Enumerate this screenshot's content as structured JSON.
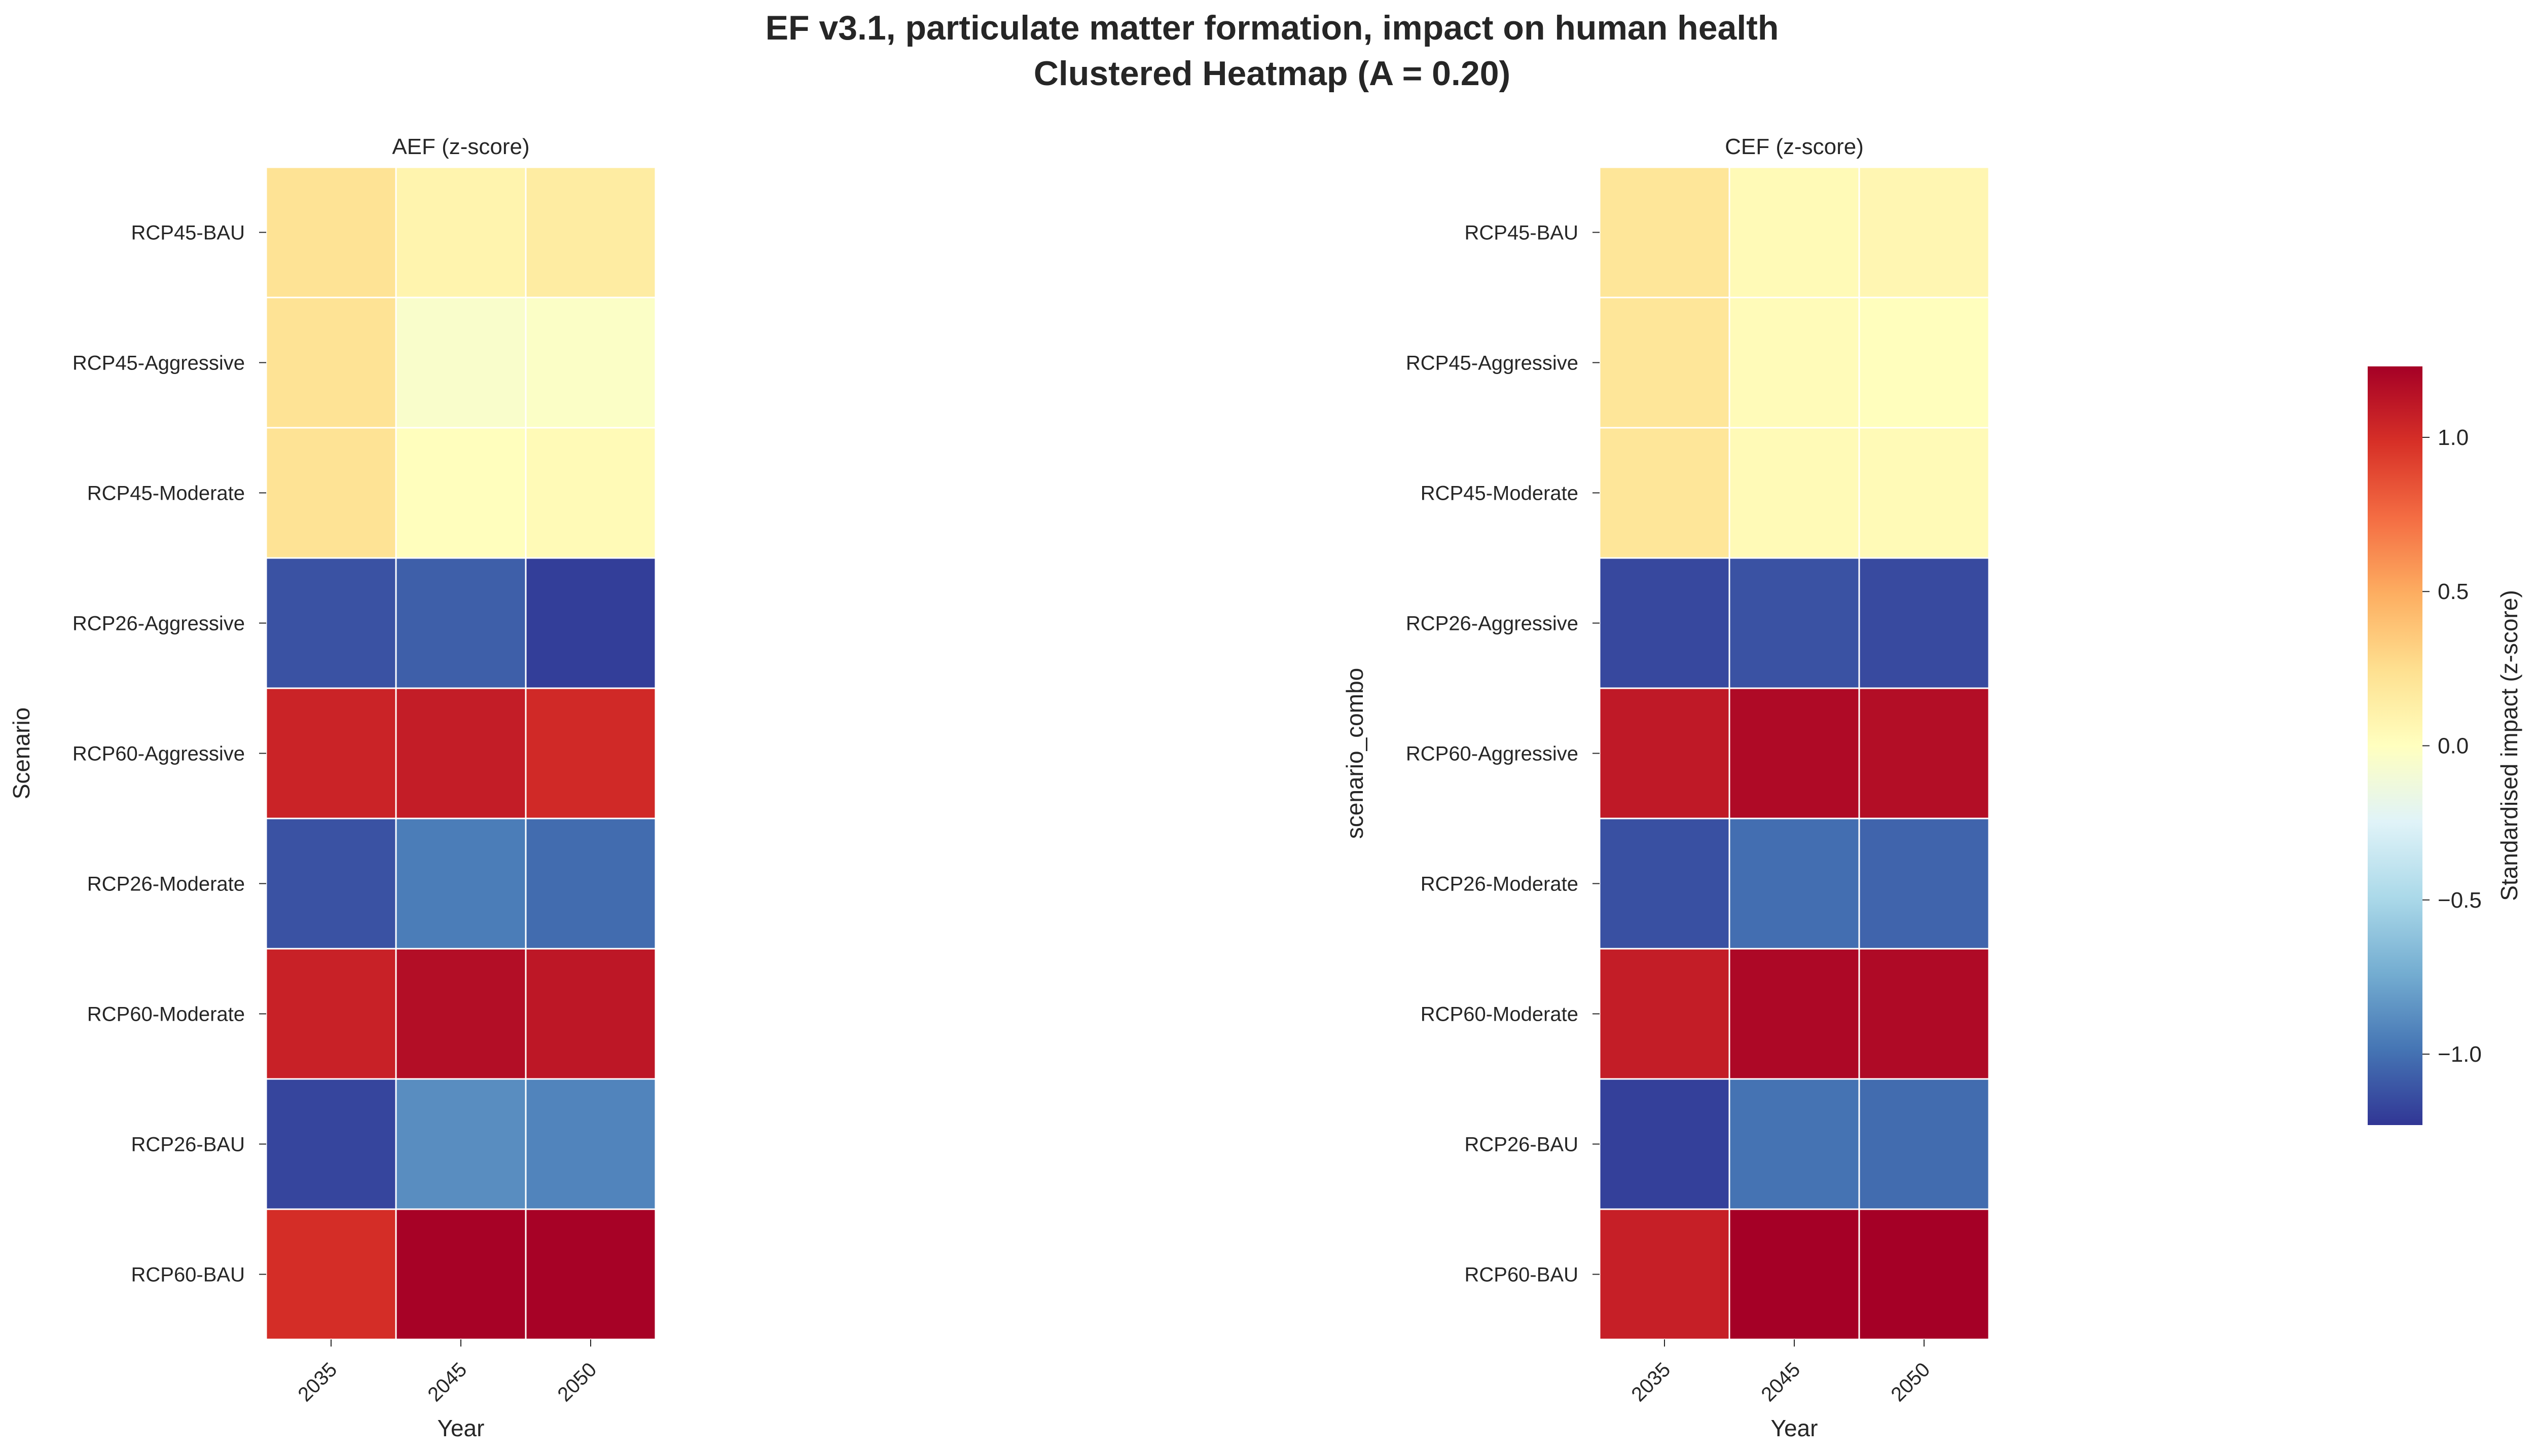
{
  "chart_data": {
    "type": "heatmap",
    "title": "EF v3.1, particulate matter formation, impact on human health",
    "subtitle": "Clustered Heatmap (A = 0.20)",
    "colormap": "RdYlBu_r",
    "vmin": -1.23,
    "vmax": 1.23,
    "colorbar": {
      "label": "Standardised impact (z-score)",
      "ticks": [
        1.0,
        0.5,
        0.0,
        -0.5,
        -1.0
      ],
      "tick_labels": [
        "1.0",
        "0.5",
        "0.0",
        "−0.5",
        "−1.0"
      ],
      "placement": "right"
    },
    "panels": [
      {
        "title": "AEF (z-score)",
        "xlabel": "Year",
        "ylabel": "Scenario",
        "columns": [
          "2035",
          "2045",
          "2050"
        ],
        "rows": [
          "RCP45-BAU",
          "RCP45-Aggressive",
          "RCP45-Moderate",
          "RCP26-Aggressive",
          "RCP60-Aggressive",
          "RCP26-Moderate",
          "RCP60-Moderate",
          "RCP26-BAU",
          "RCP60-BAU"
        ],
        "values": [
          [
            0.22,
            0.09,
            0.15
          ],
          [
            0.22,
            -0.05,
            -0.03
          ],
          [
            0.22,
            0.01,
            0.04
          ],
          [
            -1.12,
            -1.07,
            -1.2
          ],
          [
            1.05,
            1.08,
            1.02
          ],
          [
            -1.12,
            -0.95,
            -1.02
          ],
          [
            1.06,
            1.16,
            1.11
          ],
          [
            -1.17,
            -0.88,
            -0.92
          ],
          [
            1.0,
            1.22,
            1.22
          ]
        ]
      },
      {
        "title": "CEF (z-score)",
        "xlabel": "Year",
        "ylabel": "scenario_combo",
        "columns": [
          "2035",
          "2045",
          "2050"
        ],
        "rows": [
          "RCP45-BAU",
          "RCP45-Aggressive",
          "RCP45-Moderate",
          "RCP26-Aggressive",
          "RCP60-Aggressive",
          "RCP26-Moderate",
          "RCP60-Moderate",
          "RCP26-BAU",
          "RCP60-BAU"
        ],
        "values": [
          [
            0.2,
            0.04,
            0.07
          ],
          [
            0.2,
            0.03,
            0.01
          ],
          [
            0.2,
            0.04,
            0.04
          ],
          [
            -1.16,
            -1.12,
            -1.15
          ],
          [
            1.1,
            1.18,
            1.16
          ],
          [
            -1.13,
            -1.01,
            -1.05
          ],
          [
            1.08,
            1.19,
            1.18
          ],
          [
            -1.19,
            -0.99,
            -1.02
          ],
          [
            1.07,
            1.23,
            1.23
          ]
        ]
      }
    ]
  }
}
